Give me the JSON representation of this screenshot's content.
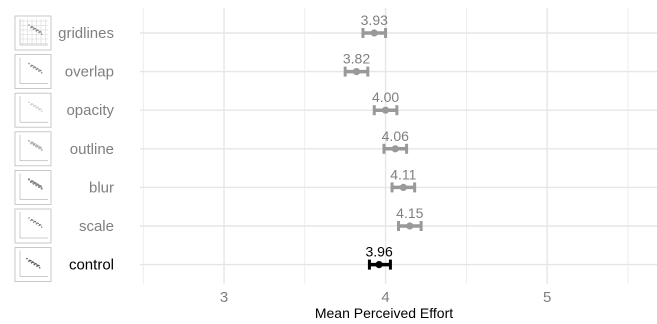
{
  "chart_data": {
    "type": "errorbar",
    "xlabel": "Mean Perceived Effort",
    "ylabel": "",
    "xlim": [
      2.48,
      5.68
    ],
    "x_ticks": [
      3,
      4,
      5
    ],
    "grid": true,
    "categories": [
      "gridlines",
      "overlap",
      "opacity",
      "outline",
      "blur",
      "scale",
      "control"
    ],
    "values": [
      3.93,
      3.82,
      4.0,
      4.06,
      4.11,
      4.15,
      3.96
    ],
    "value_labels": [
      "3.93",
      "3.82",
      "4.00",
      "4.06",
      "4.11",
      "4.15",
      "3.96"
    ],
    "ci_low": [
      3.86,
      3.75,
      3.93,
      3.99,
      4.04,
      4.08,
      3.9
    ],
    "ci_high": [
      4.0,
      3.89,
      4.07,
      4.13,
      4.18,
      4.22,
      4.03
    ],
    "colors": {
      "default": "#999999",
      "control": "#000000",
      "label_default": "#7f7f7f",
      "label_control": "#000000",
      "grid": "#e6e6e6",
      "value_label_default": "#808080"
    }
  }
}
